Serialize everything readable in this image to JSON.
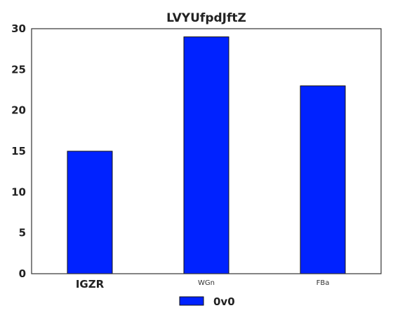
{
  "chart_data": {
    "type": "bar",
    "title": "LVYUfpdJftZ",
    "categories": [
      "IGZR",
      "WGn",
      "FBa"
    ],
    "series": [
      {
        "name": "0v0",
        "values": [
          15,
          29,
          23
        ],
        "color": "#0022ff"
      }
    ],
    "ylim": [
      0,
      30
    ],
    "yticks": [
      0,
      5,
      10,
      15,
      20,
      25,
      30
    ],
    "xlabel": "",
    "ylabel": "",
    "grid": false,
    "legend_position": "bottom-center"
  }
}
